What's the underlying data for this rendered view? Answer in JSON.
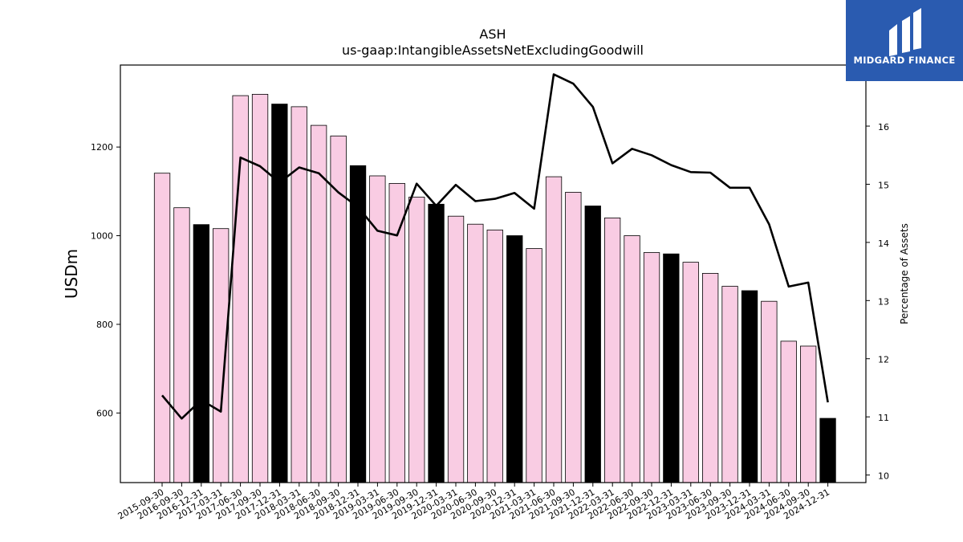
{
  "logo": {
    "text": "MIDGARD FINANCE",
    "background": "#2a5bb0"
  },
  "chart_data": {
    "type": "bar",
    "title": "ASH",
    "subtitle": "us-gaap:IntangibleAssetsNetExcludingGoodwill",
    "ylabel": "USDm",
    "y2label": "Percentage of Assets",
    "ylim": [
      443,
      1385
    ],
    "y2lim": [
      9.87,
      17.05
    ],
    "yticks": [
      600,
      800,
      1000,
      1200
    ],
    "y2ticks": [
      10,
      11,
      12,
      13,
      14,
      15,
      16
    ],
    "colors": {
      "quarter": "#f9cce3",
      "year_end": "#000000",
      "line": "#000000"
    },
    "categories": [
      "2015-09-30",
      "2016-09-30",
      "2016-12-31",
      "2017-03-31",
      "2017-06-30",
      "2017-09-30",
      "2017-12-31",
      "2018-03-31",
      "2018-06-30",
      "2018-09-30",
      "2018-12-31",
      "2019-03-31",
      "2019-06-30",
      "2019-09-30",
      "2019-12-31",
      "2020-03-31",
      "2020-06-30",
      "2020-09-30",
      "2020-12-31",
      "2021-03-31",
      "2021-06-30",
      "2021-09-30",
      "2021-12-31",
      "2022-03-31",
      "2022-06-30",
      "2022-09-30",
      "2022-12-31",
      "2023-03-31",
      "2023-06-30",
      "2023-09-30",
      "2023-12-31",
      "2024-03-31",
      "2024-06-30",
      "2024-09-30",
      "2024-12-31"
    ],
    "series": [
      {
        "type": "bar",
        "values": [
          1141,
          1063,
          1025,
          1016,
          1316,
          1319,
          1297,
          1291,
          1249,
          1225,
          1158,
          1135,
          1118,
          1087,
          1071,
          1044,
          1026,
          1013,
          1000,
          971,
          1133,
          1098,
          1067,
          1040,
          1000,
          962,
          959,
          940,
          915,
          886,
          876,
          852,
          762,
          751,
          588
        ],
        "year_end": [
          false,
          false,
          true,
          false,
          false,
          false,
          true,
          false,
          false,
          false,
          true,
          false,
          false,
          false,
          true,
          false,
          false,
          false,
          true,
          false,
          false,
          false,
          true,
          false,
          false,
          false,
          true,
          false,
          false,
          false,
          true,
          false,
          false,
          false,
          true
        ]
      },
      {
        "type": "line",
        "axis": "right",
        "values": [
          11.37,
          10.97,
          11.29,
          11.09,
          15.46,
          15.31,
          15.03,
          15.29,
          15.19,
          14.86,
          14.61,
          14.2,
          14.12,
          15.01,
          14.63,
          14.99,
          14.71,
          14.75,
          14.85,
          14.58,
          16.89,
          16.73,
          16.33,
          15.36,
          15.61,
          15.5,
          15.33,
          15.21,
          15.2,
          14.94,
          14.94,
          14.31,
          13.24,
          13.31,
          11.25
        ]
      }
    ]
  }
}
